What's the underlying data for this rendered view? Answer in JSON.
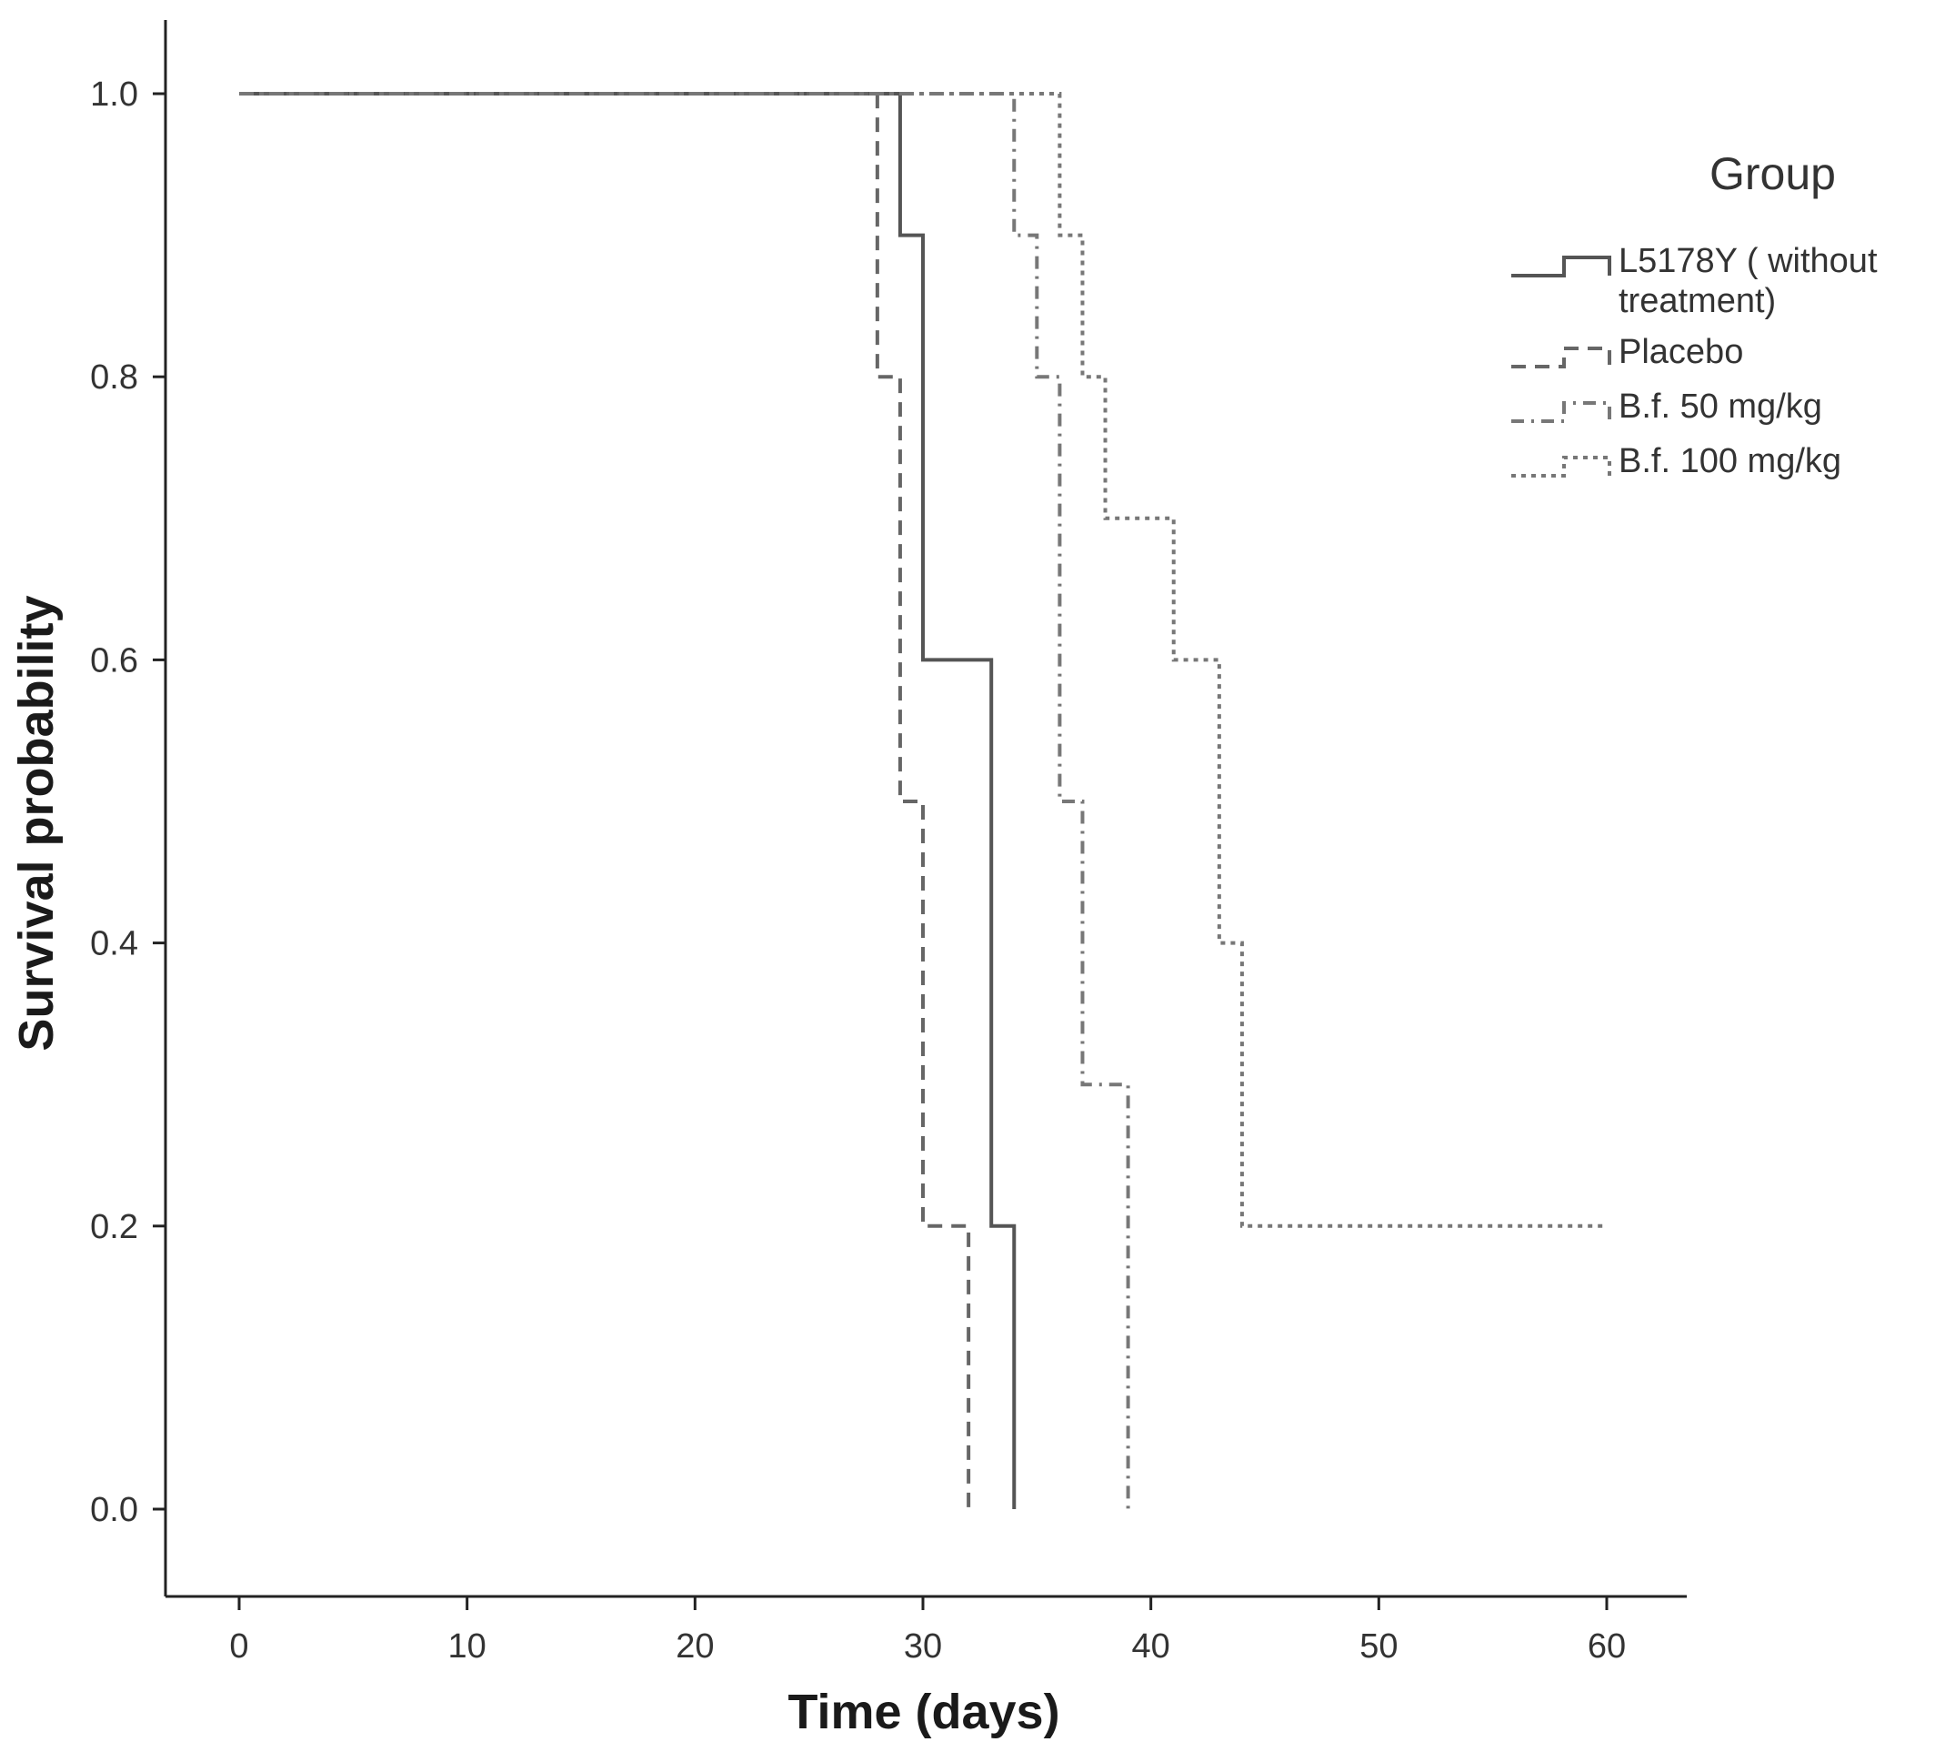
{
  "chart_data": {
    "type": "line",
    "subtype": "kaplan-meier step",
    "xlabel": "Time (days)",
    "ylabel": "Survival probability",
    "xlim": [
      -3,
      63
    ],
    "ylim": [
      -0.05,
      1.05
    ],
    "x_ticks": [
      "0",
      "10",
      "20",
      "30",
      "40",
      "50",
      "60"
    ],
    "y_ticks": [
      "0.0",
      "0.2",
      "0.4",
      "0.6",
      "0.8",
      "1.0"
    ],
    "grid": false,
    "legend": {
      "title": "Group",
      "position": "top-right"
    },
    "series": [
      {
        "name": "L5178Y ( without treatment)",
        "name_lines": [
          "L5178Y ( without",
          "treatment)"
        ],
        "style": "solid",
        "color": "#555555",
        "steps": [
          [
            0,
            1.0
          ],
          [
            29,
            0.9
          ],
          [
            30,
            0.6
          ],
          [
            33,
            0.2
          ],
          [
            34,
            0.0
          ]
        ]
      },
      {
        "name": "Placebo",
        "name_lines": [
          "Placebo"
        ],
        "style": "dash",
        "color": "#666666",
        "steps": [
          [
            0,
            1.0
          ],
          [
            28,
            0.8
          ],
          [
            29,
            0.5
          ],
          [
            30,
            0.2
          ],
          [
            32,
            0.0
          ]
        ]
      },
      {
        "name": "B.f. 50 mg/kg",
        "name_lines": [
          "B.f. 50 mg/kg"
        ],
        "style": "dash-dot",
        "color": "#777777",
        "steps": [
          [
            0,
            1.0
          ],
          [
            34,
            0.9
          ],
          [
            35,
            0.8
          ],
          [
            36,
            0.5
          ],
          [
            37,
            0.3
          ],
          [
            39,
            0.0
          ]
        ]
      },
      {
        "name": "B.f. 100 mg/kg",
        "name_lines": [
          "B.f. 100 mg/kg"
        ],
        "style": "dot",
        "color": "#777777",
        "steps": [
          [
            0,
            1.0
          ],
          [
            36,
            0.9
          ],
          [
            37,
            0.8
          ],
          [
            38,
            0.7
          ],
          [
            41,
            0.6
          ],
          [
            43,
            0.4
          ],
          [
            44,
            0.2
          ],
          [
            60,
            0.2
          ]
        ]
      }
    ]
  }
}
